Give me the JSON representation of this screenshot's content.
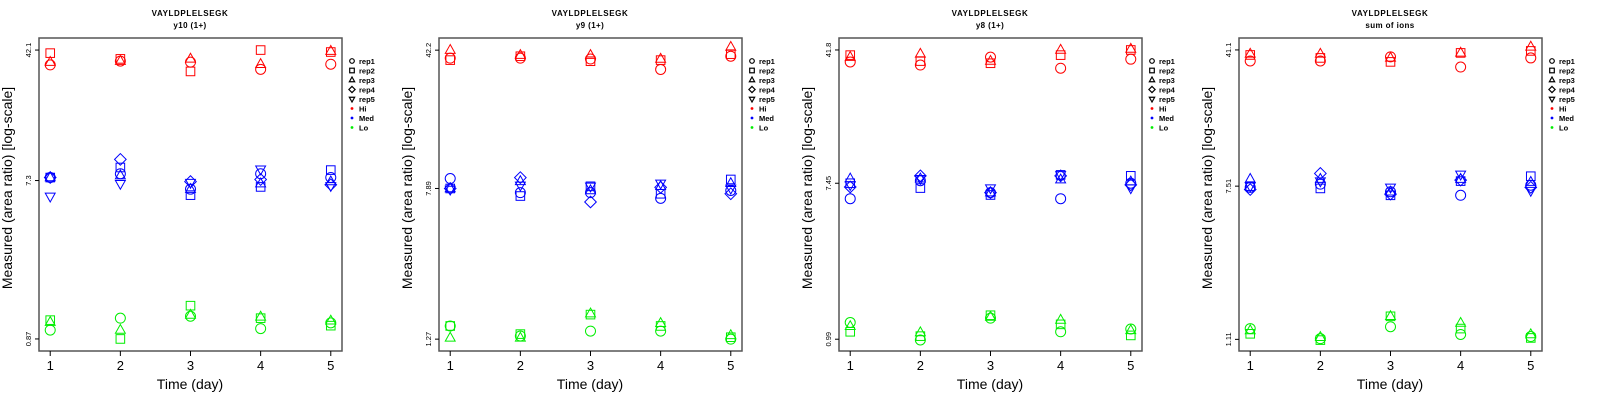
{
  "legend": {
    "reps": [
      "rep1",
      "rep2",
      "rep3",
      "rep4",
      "rep5"
    ],
    "rep_shapes": [
      "circle",
      "square",
      "triangle",
      "diamond",
      "triangle-down"
    ],
    "levels": [
      "Hi",
      "Med",
      "Lo"
    ],
    "level_colors": {
      "Hi": "#ff0000",
      "Med": "#0000ff",
      "Lo": "#00ee00"
    }
  },
  "chart_data": [
    {
      "type": "scatter",
      "title": "VAYLDPLELSEGK",
      "subtitle": "y10 (1+)",
      "xlabel": "Time (day)",
      "ylabel": "Measured (area ratio) [log-scale]",
      "yscale": "log",
      "xlim": [
        0.84,
        5.16
      ],
      "ylim": [
        0.74,
        49.5
      ],
      "xticks": [
        "1",
        "2",
        "3",
        "4",
        "5"
      ],
      "yticks": [
        {
          "value": 0.87,
          "label": "0.87"
        },
        {
          "value": 7.3,
          "label": "7.3"
        },
        {
          "value": 42.1,
          "label": "42.1"
        }
      ],
      "series": [
        {
          "level": "Hi",
          "rep": "rep1",
          "y": [
            34.5,
            36.3,
            35.8,
            32.5,
            34.8
          ]
        },
        {
          "level": "Hi",
          "rep": "rep2",
          "y": [
            40.4,
            37.4,
            31.6,
            42.1,
            41.0
          ]
        },
        {
          "level": "Hi",
          "rep": "rep3",
          "y": [
            35.8,
            36.3,
            37.4,
            34.8,
            41.5
          ]
        },
        {
          "level": "Med",
          "rep": "rep1",
          "y": [
            7.6,
            8.0,
            6.5,
            8.0,
            7.6
          ]
        },
        {
          "level": "Med",
          "rep": "rep2",
          "y": [
            7.6,
            8.7,
            6.0,
            6.7,
            8.4
          ]
        },
        {
          "level": "Med",
          "rep": "rep3",
          "y": [
            7.6,
            7.8,
            6.5,
            7.0,
            7.2
          ]
        },
        {
          "level": "Med",
          "rep": "rep4",
          "y": [
            7.6,
            9.7,
            7.2,
            7.4,
            6.9
          ]
        },
        {
          "level": "Med",
          "rep": "rep5",
          "y": [
            5.9,
            7.0,
            7.1,
            8.5,
            6.8
          ]
        },
        {
          "level": "Lo",
          "rep": "rep1",
          "y": [
            0.98,
            1.15,
            1.18,
            1.0,
            1.08
          ]
        },
        {
          "level": "Lo",
          "rep": "rep2",
          "y": [
            1.12,
            0.87,
            1.36,
            1.15,
            1.04
          ]
        },
        {
          "level": "Lo",
          "rep": "rep3",
          "y": [
            1.09,
            0.98,
            1.2,
            1.17,
            1.11
          ]
        }
      ]
    },
    {
      "type": "scatter",
      "title": "VAYLDPLELSEGK",
      "subtitle": "y9 (1+)",
      "xlabel": "Time (day)",
      "ylabel": "Measured (area ratio) [log-scale]",
      "yscale": "log",
      "xlim": [
        0.84,
        5.16
      ],
      "ylim": [
        1.1,
        48.9
      ],
      "xticks": [
        "1",
        "2",
        "3",
        "4",
        "5"
      ],
      "yticks": [
        {
          "value": 1.27,
          "label": "1.27"
        },
        {
          "value": 7.89,
          "label": "7.89"
        },
        {
          "value": 42.2,
          "label": "42.2"
        }
      ],
      "series": [
        {
          "level": "Hi",
          "rep": "rep1",
          "y": [
            38.3,
            38.3,
            37.9,
            33.4,
            39.2
          ]
        },
        {
          "level": "Hi",
          "rep": "rep2",
          "y": [
            37.4,
            39.2,
            36.9,
            37.4,
            40.2
          ]
        },
        {
          "level": "Hi",
          "rep": "rep3",
          "y": [
            42.2,
            39.7,
            39.7,
            37.9,
            43.8
          ]
        },
        {
          "level": "Med",
          "rep": "rep1",
          "y": [
            8.9,
            7.5,
            7.5,
            7.0,
            7.7
          ]
        },
        {
          "level": "Med",
          "rep": "rep2",
          "y": [
            7.89,
            7.2,
            8.1,
            7.4,
            8.8
          ]
        },
        {
          "level": "Med",
          "rep": "rep3",
          "y": [
            7.89,
            8.6,
            7.7,
            8.1,
            8.4
          ]
        },
        {
          "level": "Med",
          "rep": "rep4",
          "y": [
            7.89,
            9.0,
            6.7,
            8.0,
            7.4
          ]
        },
        {
          "level": "Med",
          "rep": "rep5",
          "y": [
            7.8,
            8.2,
            8.1,
            8.4,
            7.9
          ]
        },
        {
          "level": "Lo",
          "rep": "rep1",
          "y": [
            1.49,
            1.32,
            1.4,
            1.4,
            1.27
          ]
        },
        {
          "level": "Lo",
          "rep": "rep2",
          "y": [
            1.49,
            1.35,
            1.71,
            1.49,
            1.3
          ]
        },
        {
          "level": "Lo",
          "rep": "rep3",
          "y": [
            1.29,
            1.29,
            1.73,
            1.54,
            1.33
          ]
        }
      ]
    },
    {
      "type": "scatter",
      "title": "VAYLDPLELSEGK",
      "subtitle": "y8 (1+)",
      "xlabel": "Time (day)",
      "ylabel": "Measured (area ratio) [log-scale]",
      "yscale": "log",
      "xlim": [
        0.84,
        5.16
      ],
      "ylim": [
        0.85,
        48.8
      ],
      "xticks": [
        "1",
        "2",
        "3",
        "4",
        "5"
      ],
      "yticks": [
        {
          "value": 0.99,
          "label": "0.99"
        },
        {
          "value": 7.45,
          "label": "7.45"
        },
        {
          "value": 41.8,
          "label": "41.8"
        }
      ],
      "series": [
        {
          "level": "Hi",
          "rep": "rep1",
          "y": [
            35.8,
            34.4,
            38.1,
            33.0,
            37.1
          ]
        },
        {
          "level": "Hi",
          "rep": "rep2",
          "y": [
            39.1,
            36.2,
            35.2,
            39.1,
            41.8
          ]
        },
        {
          "level": "Hi",
          "rep": "rep3",
          "y": [
            38.1,
            39.7,
            36.2,
            41.8,
            42.3
          ]
        },
        {
          "level": "Med",
          "rep": "rep1",
          "y": [
            6.1,
            7.7,
            6.6,
            6.1,
            7.45
          ]
        },
        {
          "level": "Med",
          "rep": "rep2",
          "y": [
            7.45,
            7.0,
            6.4,
            8.3,
            8.2
          ]
        },
        {
          "level": "Med",
          "rep": "rep3",
          "y": [
            7.9,
            7.9,
            6.6,
            7.8,
            7.6
          ]
        },
        {
          "level": "Med",
          "rep": "rep4",
          "y": [
            7.1,
            8.2,
            6.6,
            8.2,
            7.3
          ]
        },
        {
          "level": "Med",
          "rep": "rep5",
          "y": [
            7.3,
            7.9,
            7.0,
            8.3,
            7.0
          ]
        },
        {
          "level": "Lo",
          "rep": "rep1",
          "y": [
            1.23,
            0.98,
            1.3,
            1.09,
            1.13
          ]
        },
        {
          "level": "Lo",
          "rep": "rep2",
          "y": [
            1.09,
            1.03,
            1.35,
            1.2,
            1.04
          ]
        },
        {
          "level": "Lo",
          "rep": "rep3",
          "y": [
            1.17,
            1.08,
            1.32,
            1.27,
            1.11
          ]
        }
      ]
    },
    {
      "type": "scatter",
      "title": "VAYLDPLELSEGK",
      "subtitle": "sum of ions",
      "xlabel": "Time (day)",
      "ylabel": "Measured (area ratio) [log-scale]",
      "yscale": "log",
      "xlim": [
        0.84,
        5.16
      ],
      "ylim": [
        0.96,
        47.7
      ],
      "xticks": [
        "1",
        "2",
        "3",
        "4",
        "5"
      ],
      "yticks": [
        {
          "value": 1.11,
          "label": "1.11"
        },
        {
          "value": 7.51,
          "label": "7.51"
        },
        {
          "value": 41.1,
          "label": "41.1"
        }
      ],
      "series": [
        {
          "level": "Hi",
          "rep": "rep1",
          "y": [
            35.8,
            35.8,
            37.7,
            33.2,
            37.2
          ]
        },
        {
          "level": "Hi",
          "rep": "rep2",
          "y": [
            38.6,
            37.2,
            35.4,
            39.6,
            40.6
          ]
        },
        {
          "level": "Hi",
          "rep": "rep3",
          "y": [
            39.1,
            39.1,
            37.2,
            39.6,
            42.7
          ]
        },
        {
          "level": "Med",
          "rep": "rep1",
          "y": [
            7.4,
            7.7,
            7.0,
            6.7,
            7.6
          ]
        },
        {
          "level": "Med",
          "rep": "rep2",
          "y": [
            7.51,
            7.3,
            6.7,
            8.0,
            8.5
          ]
        },
        {
          "level": "Med",
          "rep": "rep3",
          "y": [
            8.2,
            8.2,
            7.0,
            8.2,
            7.9
          ]
        },
        {
          "level": "Med",
          "rep": "rep4",
          "y": [
            7.2,
            8.8,
            6.8,
            8.1,
            7.4
          ]
        },
        {
          "level": "Med",
          "rep": "rep5",
          "y": [
            7.51,
            8.0,
            7.4,
            8.7,
            7.1
          ]
        },
        {
          "level": "Lo",
          "rep": "rep1",
          "y": [
            1.27,
            1.12,
            1.3,
            1.18,
            1.15
          ]
        },
        {
          "level": "Lo",
          "rep": "rep2",
          "y": [
            1.19,
            1.1,
            1.48,
            1.27,
            1.13
          ]
        },
        {
          "level": "Lo",
          "rep": "rep3",
          "y": [
            1.24,
            1.14,
            1.48,
            1.36,
            1.18
          ]
        }
      ]
    }
  ]
}
